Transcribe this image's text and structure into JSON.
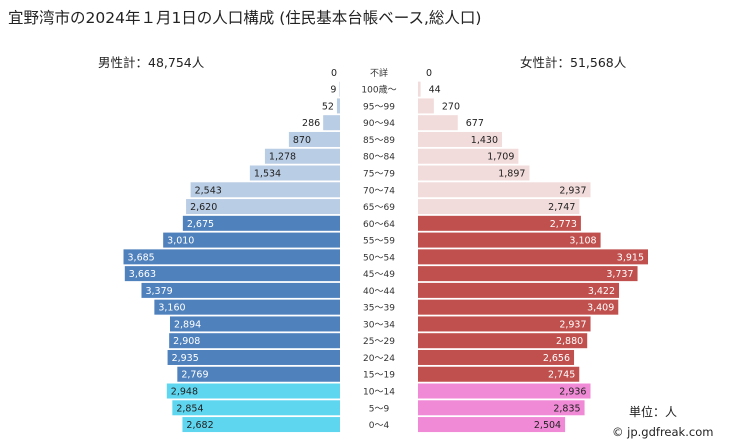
{
  "page": {
    "title": "宜野湾市の2024年１月1日の人口構成 (住民基本台帳ベース,総人口)",
    "male_total": "男性計：48,754人",
    "female_total": "女性計：51,568人",
    "unit": "単位：人",
    "source": "© jp.gdfreak.com"
  },
  "chart_data": {
    "type": "bar",
    "subtype": "population-pyramid",
    "categories": [
      "不詳",
      "100歳～",
      "95～99",
      "90～94",
      "85～89",
      "80～84",
      "75～79",
      "70～74",
      "65～69",
      "60～64",
      "55～59",
      "50～54",
      "45～49",
      "40～44",
      "35～39",
      "30～34",
      "25～29",
      "20～24",
      "15～19",
      "10～14",
      "5～9",
      "0～4"
    ],
    "series": [
      {
        "name": "男性",
        "values": [
          0,
          9,
          52,
          286,
          870,
          1278,
          1534,
          2543,
          2620,
          2675,
          3010,
          3685,
          3663,
          3379,
          3160,
          2894,
          2908,
          2935,
          2769,
          2948,
          2854,
          2682
        ]
      },
      {
        "name": "女性",
        "values": [
          0,
          44,
          270,
          677,
          1430,
          1709,
          1897,
          2937,
          2747,
          2773,
          3108,
          3915,
          3737,
          3422,
          3409,
          2937,
          2880,
          2656,
          2745,
          2936,
          2835,
          2504
        ]
      }
    ],
    "labels_male": [
      "0",
      "9",
      "52",
      "286",
      "870",
      "1,278",
      "1,534",
      "2,543",
      "2,620",
      "2,675",
      "3,010",
      "3,685",
      "3,663",
      "3,379",
      "3,160",
      "2,894",
      "2,908",
      "2,935",
      "2,769",
      "2,948",
      "2,854",
      "2,682"
    ],
    "labels_female": [
      "0",
      "44",
      "270",
      "677",
      "1,430",
      "1,709",
      "1,897",
      "2,937",
      "2,747",
      "2,773",
      "3,108",
      "3,915",
      "3,737",
      "3,422",
      "3,409",
      "2,937",
      "2,880",
      "2,656",
      "2,745",
      "2,936",
      "2,835",
      "2,504"
    ],
    "group_of_row": [
      "elderly",
      "elderly",
      "elderly",
      "elderly",
      "elderly",
      "elderly",
      "elderly",
      "elderly",
      "elderly",
      "working",
      "working",
      "working",
      "working",
      "working",
      "working",
      "working",
      "working",
      "working",
      "working",
      "child",
      "child",
      "child"
    ],
    "colors": {
      "male": {
        "elderly": "#b9cde5",
        "working": "#4f81bd",
        "child": "#5ed6f0"
      },
      "female": {
        "elderly": "#f2dcdb",
        "working": "#c0504d",
        "child": "#f08ad6"
      }
    },
    "xlim": [
      0,
      4000
    ]
  }
}
